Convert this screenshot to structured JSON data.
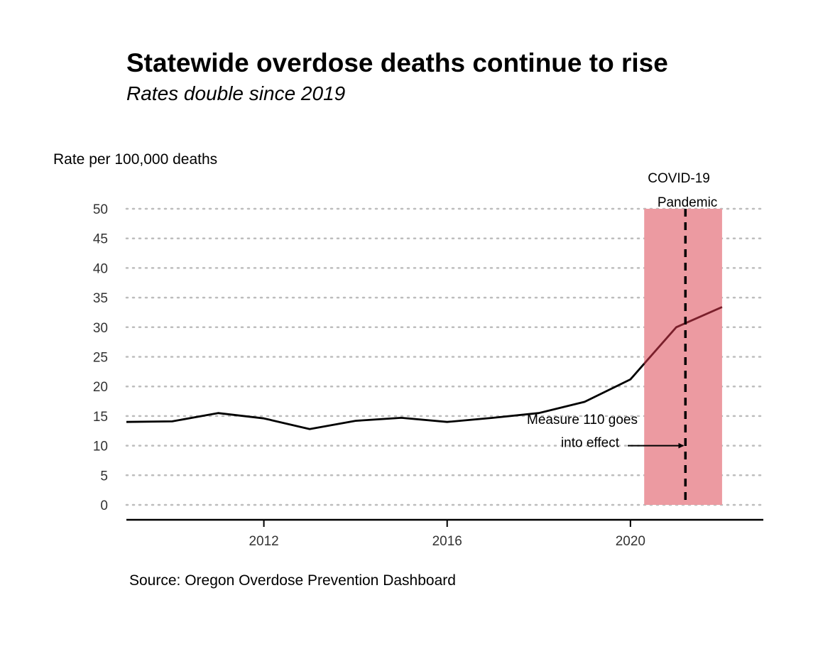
{
  "chart_data": {
    "type": "line",
    "title": "Statewide overdose deaths continue to rise",
    "subtitle": "Rates double since 2019",
    "ylabel": "Rate per 100,000 deaths",
    "xlabel": "",
    "source": "Source: Oregon Overdose Prevention Dashboard",
    "xlim": [
      2009,
      2022.9
    ],
    "ylim": [
      0,
      50
    ],
    "x_ticks": [
      2012,
      2016,
      2020
    ],
    "y_ticks": [
      0,
      5,
      10,
      15,
      20,
      25,
      30,
      35,
      40,
      45,
      50
    ],
    "grid": "horizontal-dotted",
    "legend": "none",
    "series": [
      {
        "x": [
          2009,
          2010,
          2011,
          2012,
          2013,
          2014,
          2015,
          2016,
          2017,
          2018,
          2019,
          2020,
          2021,
          2022
        ],
        "values": [
          14.0,
          14.1,
          15.5,
          14.6,
          12.8,
          14.2,
          14.7,
          14.0,
          14.7,
          15.5,
          17.4,
          21.2,
          30.0,
          33.4
        ],
        "color": "#000000",
        "highlight_color": "#7a1f2b"
      }
    ],
    "shaded_region": {
      "x_start": 2020.3,
      "x_end": 2022,
      "y_start": 0,
      "y_end": 50,
      "color": "#ec9aa1",
      "label_lines": [
        "COVID-19",
        "Pandemic"
      ]
    },
    "vertical_line": {
      "x": 2021.2,
      "style": "dashed",
      "color": "#000000"
    },
    "arrow_annotation": {
      "label_lines": [
        "Measure 110 goes",
        "into effect"
      ],
      "y": 10,
      "target_x": 2021.2
    }
  }
}
